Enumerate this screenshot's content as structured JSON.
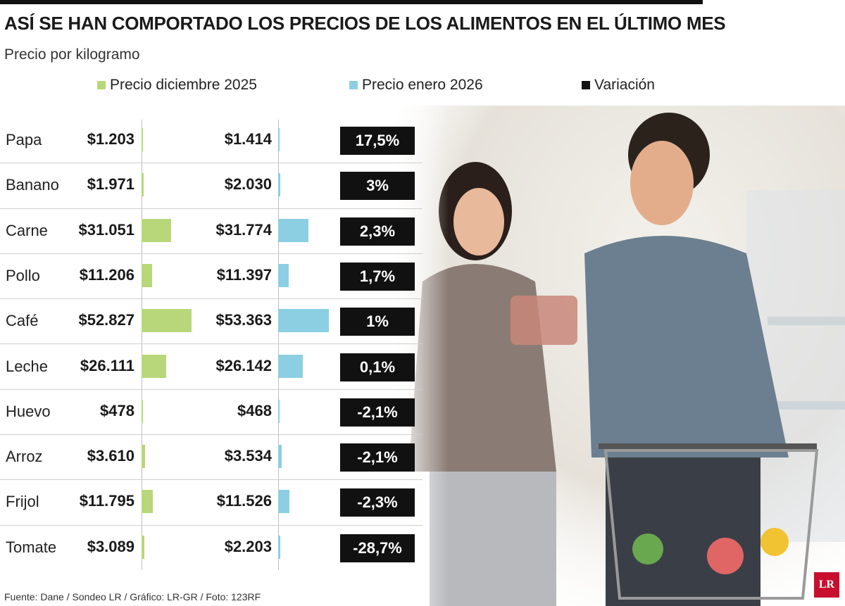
{
  "header": {
    "title": "ASÍ SE HAN COMPORTADO LOS PRECIOS DE LOS ALIMENTOS EN EL ÚLTIMO MES",
    "subtitle": "Precio por kilogramo"
  },
  "legend": {
    "dec": "Precio diciembre 2025",
    "jan": "Precio enero 2026",
    "var": "Variación"
  },
  "colors": {
    "dec": "#b8d77a",
    "jan": "#8ccfe2",
    "var": "#111111"
  },
  "rows": [
    {
      "name": "Papa",
      "dec": "$1.203",
      "jan": "$1.414",
      "var": "17,5%"
    },
    {
      "name": "Banano",
      "dec": "$1.971",
      "jan": "$2.030",
      "var": "3%"
    },
    {
      "name": "Carne",
      "dec": "$31.051",
      "jan": "$31.774",
      "var": "2,3%"
    },
    {
      "name": "Pollo",
      "dec": "$11.206",
      "jan": "$11.397",
      "var": "1,7%"
    },
    {
      "name": "Café",
      "dec": "$52.827",
      "jan": "$53.363",
      "var": "1%"
    },
    {
      "name": "Leche",
      "dec": "$26.111",
      "jan": "$26.142",
      "var": "0,1%"
    },
    {
      "name": "Huevo",
      "dec": "$478",
      "jan": "$468",
      "var": "-2,1%"
    },
    {
      "name": "Arroz",
      "dec": "$3.610",
      "jan": "$3.534",
      "var": "-2,1%"
    },
    {
      "name": "Frijol",
      "dec": "$11.795",
      "jan": "$11.526",
      "var": "-2,3%"
    },
    {
      "name": "Tomate",
      "dec": "$3.089",
      "jan": "$2.203",
      "var": "-28,7%"
    }
  ],
  "chart_data": {
    "type": "bar",
    "title": "ASÍ SE HAN COMPORTADO LOS PRECIOS DE LOS ALIMENTOS EN EL ÚLTIMO MES",
    "subtitle": "Precio por kilogramo",
    "categories": [
      "Papa",
      "Banano",
      "Carne",
      "Pollo",
      "Café",
      "Leche",
      "Huevo",
      "Arroz",
      "Frijol",
      "Tomate"
    ],
    "series": [
      {
        "name": "Precio diciembre 2025",
        "values": [
          1203,
          1971,
          31051,
          11206,
          52827,
          26111,
          478,
          3610,
          11795,
          3089
        ]
      },
      {
        "name": "Precio enero 2026",
        "values": [
          1414,
          2030,
          31774,
          11397,
          53363,
          26142,
          468,
          3534,
          11526,
          2203
        ]
      },
      {
        "name": "Variación",
        "values": [
          17.5,
          3,
          2.3,
          1.7,
          1,
          0.1,
          -2.1,
          -2.1,
          -2.3,
          -28.7
        ]
      }
    ],
    "legend_position": "top"
  },
  "footer": {
    "source": "Fuente: Dane / Sondeo LR / Gráfico: LR-GR / Foto: 123RF",
    "logo": "LR"
  }
}
